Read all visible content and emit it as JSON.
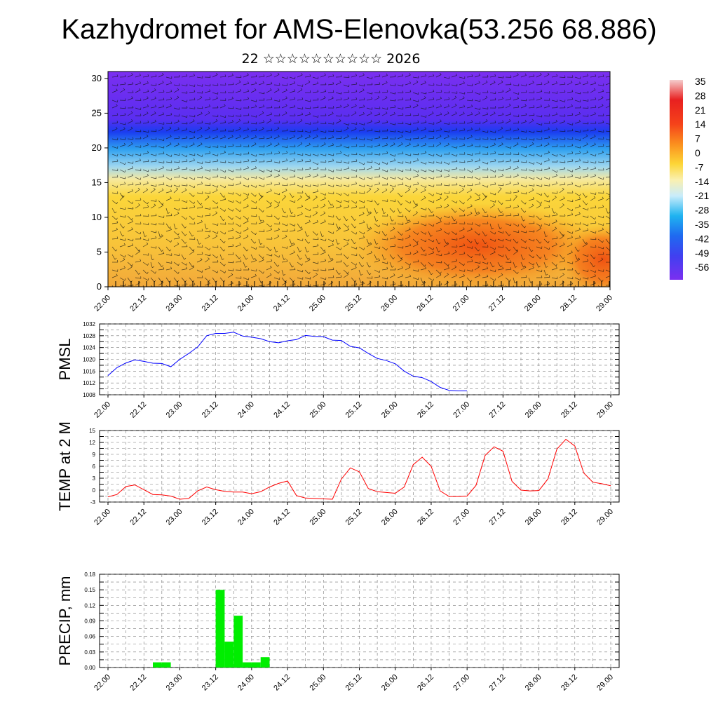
{
  "title": "Kazhydromet for AMS-Elenovka(53.256 68.886)",
  "subtitle": "22 ☆☆☆☆☆☆☆☆☆☆ 2026",
  "colorbar": {
    "labels": [
      "35",
      "28",
      "21",
      "14",
      "7",
      "0",
      "-7",
      "-14",
      "-21",
      "-28",
      "-35",
      "-42",
      "-49",
      "-56"
    ]
  },
  "time_ticks": [
    "22.00",
    "22.12",
    "23.00",
    "23.12",
    "24.00",
    "24.12",
    "25.00",
    "25.12",
    "26.00",
    "26.12",
    "27.00",
    "27.12",
    "28.00",
    "28.12",
    "29.00"
  ],
  "chart_data": [
    {
      "type": "heatmap",
      "name": "temperature-wind-cross-section",
      "title": "",
      "xlabel": "",
      "ylabel": "",
      "x_ticks": [
        "22.00",
        "22.12",
        "23.00",
        "23.12",
        "24.00",
        "24.12",
        "25.00",
        "25.12",
        "26.00",
        "26.12",
        "27.00",
        "27.12",
        "28.00",
        "28.12",
        "29.00"
      ],
      "y_ticks": [
        "0",
        "5",
        "10",
        "15",
        "20",
        "25",
        "30"
      ],
      "ylim": [
        0,
        31
      ],
      "color_scale": {
        "min": -56,
        "max": 35,
        "unit": "°C"
      },
      "description_values": {
        "surface_max": 14,
        "tropopause_level": 21,
        "top_min": -56
      }
    },
    {
      "type": "line",
      "name": "pmsl",
      "ylabel": "PMSL",
      "y_ticks": [
        "1032",
        "1028",
        "1024",
        "1020",
        "1016",
        "1012",
        "1008"
      ],
      "ylim": [
        1008,
        1032
      ],
      "x_ticks": [
        "22.00",
        "22.12",
        "23.00",
        "23.12",
        "24.00",
        "24.12",
        "25.00",
        "25.12",
        "26.00",
        "26.12",
        "27.00",
        "27.12",
        "28.00",
        "28.12",
        "29.00"
      ],
      "series": [
        {
          "name": "PMSL",
          "color": "#0000ff",
          "x": [
            0,
            1,
            2,
            3,
            4,
            5,
            6,
            7,
            8,
            9,
            10,
            11,
            12,
            13,
            14,
            15,
            16,
            17,
            18,
            19,
            20,
            21,
            22,
            23,
            24,
            25,
            26,
            27,
            28
          ],
          "values": [
            1014.5,
            1017.2,
            1018.8,
            1019.8,
            1019.3,
            1018.7,
            1018.6,
            1017.5,
            1020.0,
            1022.0,
            1024.2,
            1028.0,
            1028.8,
            1028.8,
            1029.2,
            1027.9,
            1027.5,
            1027.0,
            1026.0,
            1025.6,
            1026.3,
            1026.7,
            1028.1,
            1027.8,
            1027.7,
            1026.5,
            1026.4,
            1024.4,
            1023.9
          ]
        }
      ]
    },
    {
      "type": "line",
      "name": "temp-2m",
      "ylabel": "TEMP at 2 M",
      "y_ticks": [
        "15",
        "12",
        "9",
        "6",
        "3",
        "0",
        "-3"
      ],
      "ylim": [
        -3,
        15
      ],
      "x_ticks": [
        "22.00",
        "22.12",
        "23.00",
        "23.12",
        "24.00",
        "24.12",
        "25.00",
        "25.12",
        "26.00",
        "26.12",
        "27.00",
        "27.12",
        "28.00",
        "28.12",
        "29.00"
      ],
      "series": [
        {
          "name": "TEMP",
          "color": "#ff0000",
          "x": [
            0,
            1,
            2,
            3,
            4,
            5,
            6,
            7,
            8,
            9,
            10,
            11,
            12,
            13,
            14,
            15,
            16,
            17,
            18,
            19,
            20,
            21,
            22,
            23,
            24,
            25,
            26,
            27,
            28
          ],
          "values": [
            -1.7,
            -1.1,
            0.9,
            1.3,
            0.1,
            -1.1,
            -1.2,
            -1.5,
            -2.3,
            -2.1,
            -0.2,
            0.8,
            0.1,
            -0.3,
            -0.5,
            -0.5,
            -0.9,
            -0.4,
            0.8,
            1.7,
            2.3,
            -1.4,
            -2.0,
            -2.1,
            -2.2,
            -2.3,
            2.8,
            5.6,
            4.6
          ]
        }
      ]
    },
    {
      "type": "bar",
      "name": "precip",
      "ylabel": "PRECIP, mm",
      "y_ticks": [
        "0.18",
        "0.15",
        "0.12",
        "0.09",
        "0.06",
        "0.03",
        "0.00"
      ],
      "ylim": [
        0,
        0.18
      ],
      "x_ticks": [
        "22.00",
        "22.12",
        "23.00",
        "23.12",
        "24.00",
        "24.12",
        "25.00",
        "25.12",
        "26.00",
        "26.12",
        "27.00",
        "27.12",
        "28.00",
        "28.12",
        "29.00"
      ],
      "series": [
        {
          "name": "PRECIP",
          "color": "#00ee00",
          "x": [
            5,
            6,
            12,
            13,
            14,
            15,
            16,
            17
          ],
          "values": [
            0.01,
            0.01,
            0.15,
            0.05,
            0.1,
            0.01,
            0.01,
            0.02
          ]
        }
      ]
    }
  ]
}
